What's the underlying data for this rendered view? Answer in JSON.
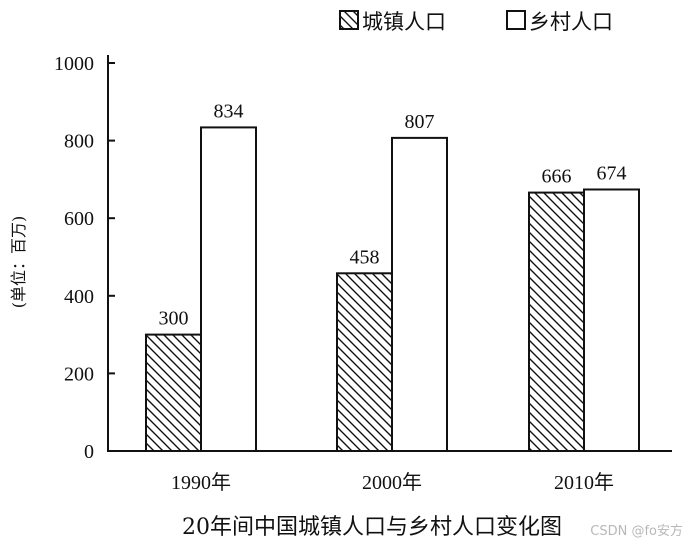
{
  "chart_data": {
    "type": "bar",
    "title": "20年间中国城镇人口与乡村人口变化图",
    "xlabel": "",
    "ylabel": "(单位：百万)",
    "categories": [
      "1990年",
      "2000年",
      "2010年"
    ],
    "series": [
      {
        "name": "城镇人口",
        "values": [
          300,
          458,
          666
        ],
        "fill": "hatched"
      },
      {
        "name": "乡村人口",
        "values": [
          834,
          807,
          674
        ],
        "fill": "white"
      }
    ],
    "ylim": [
      0,
      1000
    ],
    "yticks": [
      0,
      200,
      400,
      600,
      800,
      1000
    ],
    "grid": false,
    "legend": "top-right",
    "data_labels": true
  },
  "watermark": "CSDN @fo安方",
  "colors": {
    "bar_stroke": "#111111",
    "axis": "#111111",
    "background": "#ffffff"
  }
}
